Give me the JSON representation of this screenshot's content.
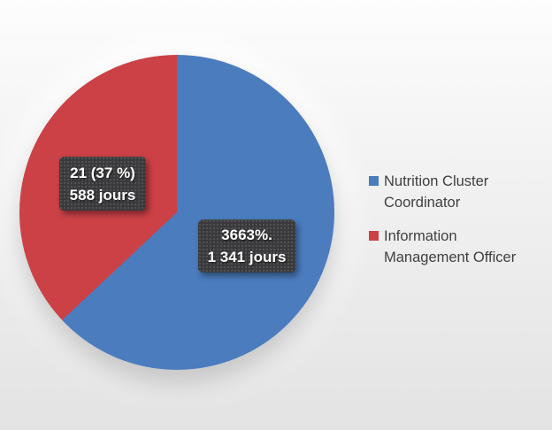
{
  "chart_data": {
    "type": "pie",
    "title": "",
    "unit": "jours",
    "legend_position": "right",
    "start_angle_deg": 0,
    "direction": "clockwise",
    "slices": [
      {
        "label": "Nutrition Cluster Coordinator",
        "percent": 63,
        "value_jours": 1341,
        "data_label_line1": "3663%.",
        "data_label_line2": "1 341 jours",
        "color": "#4A7CBE"
      },
      {
        "label": "Information Management Officer",
        "percent": 37,
        "count": 21,
        "value_jours": 588,
        "data_label_line1": "21 (37 %)",
        "data_label_line2": "588 jours",
        "color": "#CB4146"
      }
    ]
  },
  "colors": {
    "background_top": "#FDFDFD",
    "background_bottom": "#E3E3E3",
    "data_label_box": "#3A3A3C",
    "data_label_text": "#FFFFFF",
    "legend_text": "#3F3F3F"
  }
}
